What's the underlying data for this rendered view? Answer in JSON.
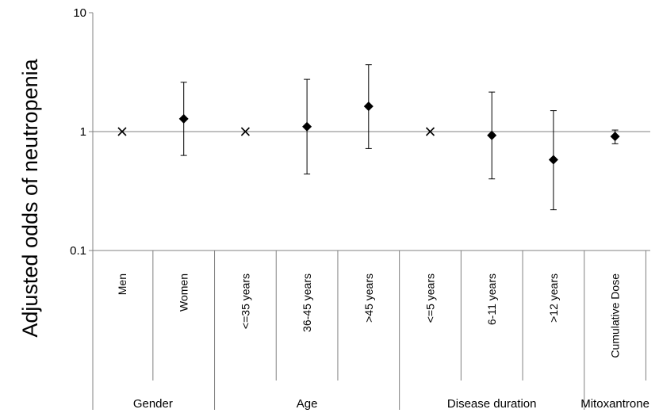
{
  "chart_data": {
    "type": "scatter",
    "ylabel": "Adjusted odds of neutropenia",
    "yscale": "log",
    "ylim": [
      0.1,
      10
    ],
    "yticks": [
      "10",
      "1",
      "0.1"
    ],
    "yticks_values": [
      10,
      1,
      0.1
    ],
    "reference_line": 1,
    "categories": [
      "Men",
      "Women",
      "<=35 years",
      "36-45 years",
      ">45 years",
      "<=5 years",
      "6-11 years",
      ">12 years",
      "Cumulative Dose"
    ],
    "groups": [
      {
        "label": "Gender",
        "categories": [
          "Men",
          "Women"
        ]
      },
      {
        "label": "Age",
        "categories": [
          "<=35 years",
          "36-45 years",
          ">45 years"
        ]
      },
      {
        "label": "Disease duration",
        "categories": [
          "<=5 years",
          "6-11 years",
          ">12 years"
        ]
      },
      {
        "label": "Mitoxantrone",
        "categories": [
          "Cumulative Dose"
        ]
      }
    ],
    "points": [
      {
        "category": "Men",
        "value": 1.0,
        "reference": true,
        "marker": "X"
      },
      {
        "category": "Women",
        "value": 1.28,
        "lower": 0.63,
        "upper": 2.6,
        "marker": "◆"
      },
      {
        "category": "<=35 years",
        "value": 1.0,
        "reference": true,
        "marker": "X"
      },
      {
        "category": "36-45 years",
        "value": 1.1,
        "lower": 0.44,
        "upper": 2.75,
        "marker": "◆"
      },
      {
        "category": ">45 years",
        "value": 1.63,
        "lower": 0.72,
        "upper": 3.65,
        "marker": "◆"
      },
      {
        "category": "<=5 years",
        "value": 1.0,
        "reference": true,
        "marker": "X"
      },
      {
        "category": "6-11 years",
        "value": 0.93,
        "lower": 0.4,
        "upper": 2.15,
        "marker": "◆"
      },
      {
        "category": ">12 years",
        "value": 0.58,
        "lower": 0.22,
        "upper": 1.5,
        "marker": "◆"
      },
      {
        "category": "Cumulative Dose",
        "value": 0.91,
        "lower": 0.79,
        "upper": 1.03,
        "marker": "◆"
      }
    ],
    "grid": false,
    "legend": "none"
  }
}
